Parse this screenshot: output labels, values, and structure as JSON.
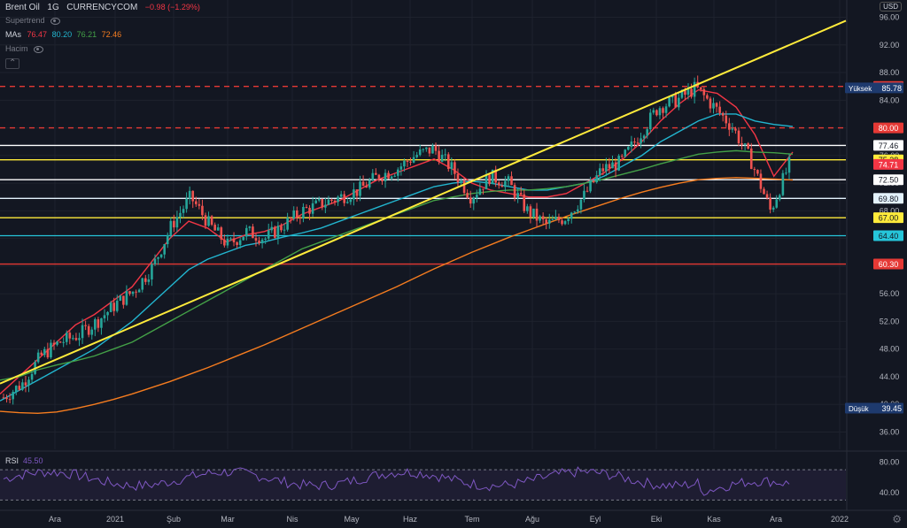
{
  "header": {
    "symbol": "Brent Oil",
    "interval": "1G",
    "source": "CURRENCYCOM",
    "change": "−0.98 (−1.29%)"
  },
  "indicators": {
    "supertrend": "Supertrend",
    "mas_label": "MAs",
    "ma_values": [
      {
        "value": "76.47",
        "color": "#f23645"
      },
      {
        "value": "80.20",
        "color": "#22b5cf"
      },
      {
        "value": "76.21",
        "color": "#43a047"
      },
      {
        "value": "72.46",
        "color": "#f57c1f"
      }
    ],
    "volume": "Hacim",
    "collapse_icon": "chevron-up-icon"
  },
  "currency_button": "USD",
  "price_axis": {
    "ticks": [
      "96.00",
      "92.00",
      "88.00",
      "84.00",
      "80.00",
      "76.00",
      "72.00",
      "68.00",
      "64.00",
      "60.00",
      "56.00",
      "52.00",
      "48.00",
      "44.00",
      "40.00",
      "36.00"
    ],
    "ylim": [
      33.5,
      98.5
    ]
  },
  "price_labels": [
    {
      "value": "86.00",
      "bg": "#e53935",
      "fg": "#ffffff"
    },
    {
      "value": "80.00",
      "bg": "#e53935",
      "fg": "#ffffff"
    },
    {
      "value": "77.46",
      "bg": "#ffffff",
      "fg": "#131722"
    },
    {
      "value": "75.38",
      "bg": "#ffeb3b",
      "fg": "#131722"
    },
    {
      "value": "74.71",
      "bg": "#f23645",
      "fg": "#ffffff"
    },
    {
      "value": "72.50",
      "bg": "#ffffff",
      "fg": "#131722"
    },
    {
      "value": "69.80",
      "bg": "#e3f2fd",
      "fg": "#131722"
    },
    {
      "value": "67.00",
      "bg": "#ffeb3b",
      "fg": "#131722"
    },
    {
      "value": "64.40",
      "bg": "#26c6da",
      "fg": "#131722"
    },
    {
      "value": "60.30",
      "bg": "#e53935",
      "fg": "#ffffff"
    }
  ],
  "high_marker": {
    "label": "Yüksek",
    "value": "85.78"
  },
  "low_marker": {
    "label": "Düşük",
    "value": "39.45"
  },
  "horizontal_levels": [
    {
      "value": 86.0,
      "color": "#e53935",
      "style": "dashed"
    },
    {
      "value": 80.0,
      "color": "#e53935",
      "style": "dashed"
    },
    {
      "value": 77.46,
      "color": "#ffffff",
      "style": "solid"
    },
    {
      "value": 75.38,
      "color": "#ffeb3b",
      "style": "solid"
    },
    {
      "value": 72.5,
      "color": "#ffffff",
      "style": "solid"
    },
    {
      "value": 69.8,
      "color": "#e3f2fd",
      "style": "solid"
    },
    {
      "value": 67.0,
      "color": "#ffeb3b",
      "style": "solid"
    },
    {
      "value": 64.4,
      "color": "#26c6da",
      "style": "solid"
    },
    {
      "value": 60.3,
      "color": "#e53935",
      "style": "solid"
    }
  ],
  "trend_line": {
    "color": "#ffeb3b",
    "from": 43.0,
    "to": 95.5
  },
  "time_axis": {
    "labels": [
      "Ara",
      "2021",
      "Şub",
      "Mar",
      "Nis",
      "May",
      "Haz",
      "Tem",
      "Ağu",
      "Eyl",
      "Eki",
      "Kas",
      "Ara",
      "2022"
    ]
  },
  "rsi": {
    "label": "RSI",
    "value": "45.50",
    "ticks": [
      "80.00",
      "40.00"
    ],
    "upper": 70,
    "lower": 30,
    "color": "#7e57c2"
  },
  "chart_data": {
    "type": "candlestick",
    "series": [
      {
        "name": "MA 76.47",
        "color": "#f23645",
        "values": [
          41.5,
          44,
          46.5,
          49,
          51.5,
          53,
          55,
          57,
          60.5,
          64,
          66.5,
          65.5,
          63.5,
          64.5,
          65,
          66,
          67.5,
          68.5,
          69.5,
          71,
          72.5,
          73.5,
          74.5,
          75.5,
          74,
          72,
          71,
          70.5,
          70,
          70,
          70.5,
          72,
          73.5,
          75.5,
          78,
          81,
          83.5,
          85.5,
          85,
          83,
          79,
          73,
          76.5
        ]
      },
      {
        "name": "MA 80.20",
        "color": "#22b5cf",
        "values": [
          40.5,
          42,
          43.5,
          45,
          46.5,
          48,
          50,
          52,
          54.5,
          57,
          59.5,
          61,
          62,
          63,
          63.5,
          64.2,
          64.8,
          65.5,
          66.5,
          67.5,
          68.5,
          69.5,
          70.5,
          71.5,
          72,
          72.3,
          72,
          71.5,
          71,
          71,
          71.5,
          72,
          73,
          74.5,
          76,
          78,
          79.5,
          81,
          82,
          82,
          81,
          80.5,
          80.2
        ]
      },
      {
        "name": "MA 76.21",
        "color": "#43a047",
        "values": [
          43.5,
          44,
          45,
          45.7,
          46.3,
          47,
          48,
          49,
          50.5,
          52,
          53.5,
          55,
          56.5,
          58,
          59.5,
          61,
          62.5,
          63.5,
          64.5,
          65.5,
          66.5,
          67.5,
          68.5,
          69.5,
          70,
          70.5,
          70.8,
          71,
          71,
          71.2,
          71.5,
          72,
          72.6,
          73.3,
          74,
          74.8,
          75.5,
          76.2,
          76.5,
          76.7,
          76.5,
          76.4,
          76.2
        ]
      },
      {
        "name": "MA 72.46",
        "color": "#f57c1f",
        "values": [
          39,
          38.8,
          38.7,
          38.9,
          39.4,
          40,
          40.7,
          41.5,
          42.4,
          43.3,
          44.3,
          45.3,
          46.4,
          47.5,
          48.6,
          49.8,
          51,
          52.2,
          53.4,
          54.6,
          55.8,
          57,
          58.3,
          59.6,
          60.8,
          62,
          63.1,
          64.2,
          65.2,
          66.2,
          67.2,
          68.1,
          69,
          69.9,
          70.7,
          71.4,
          72,
          72.5,
          72.7,
          72.8,
          72.7,
          72.6,
          72.46
        ]
      }
    ],
    "ylim": [
      33.5,
      98.5
    ],
    "close_path": [
      41,
      43,
      47,
      49,
      50,
      52,
      54.5,
      56.5,
      60,
      66,
      70,
      66,
      63,
      65,
      64,
      66,
      68,
      69,
      70,
      71,
      73,
      74,
      76,
      77,
      74,
      70,
      73,
      72,
      68,
      66,
      67,
      70,
      74,
      75,
      79,
      83,
      84,
      85.8,
      83,
      80,
      75,
      68,
      74.7
    ]
  }
}
